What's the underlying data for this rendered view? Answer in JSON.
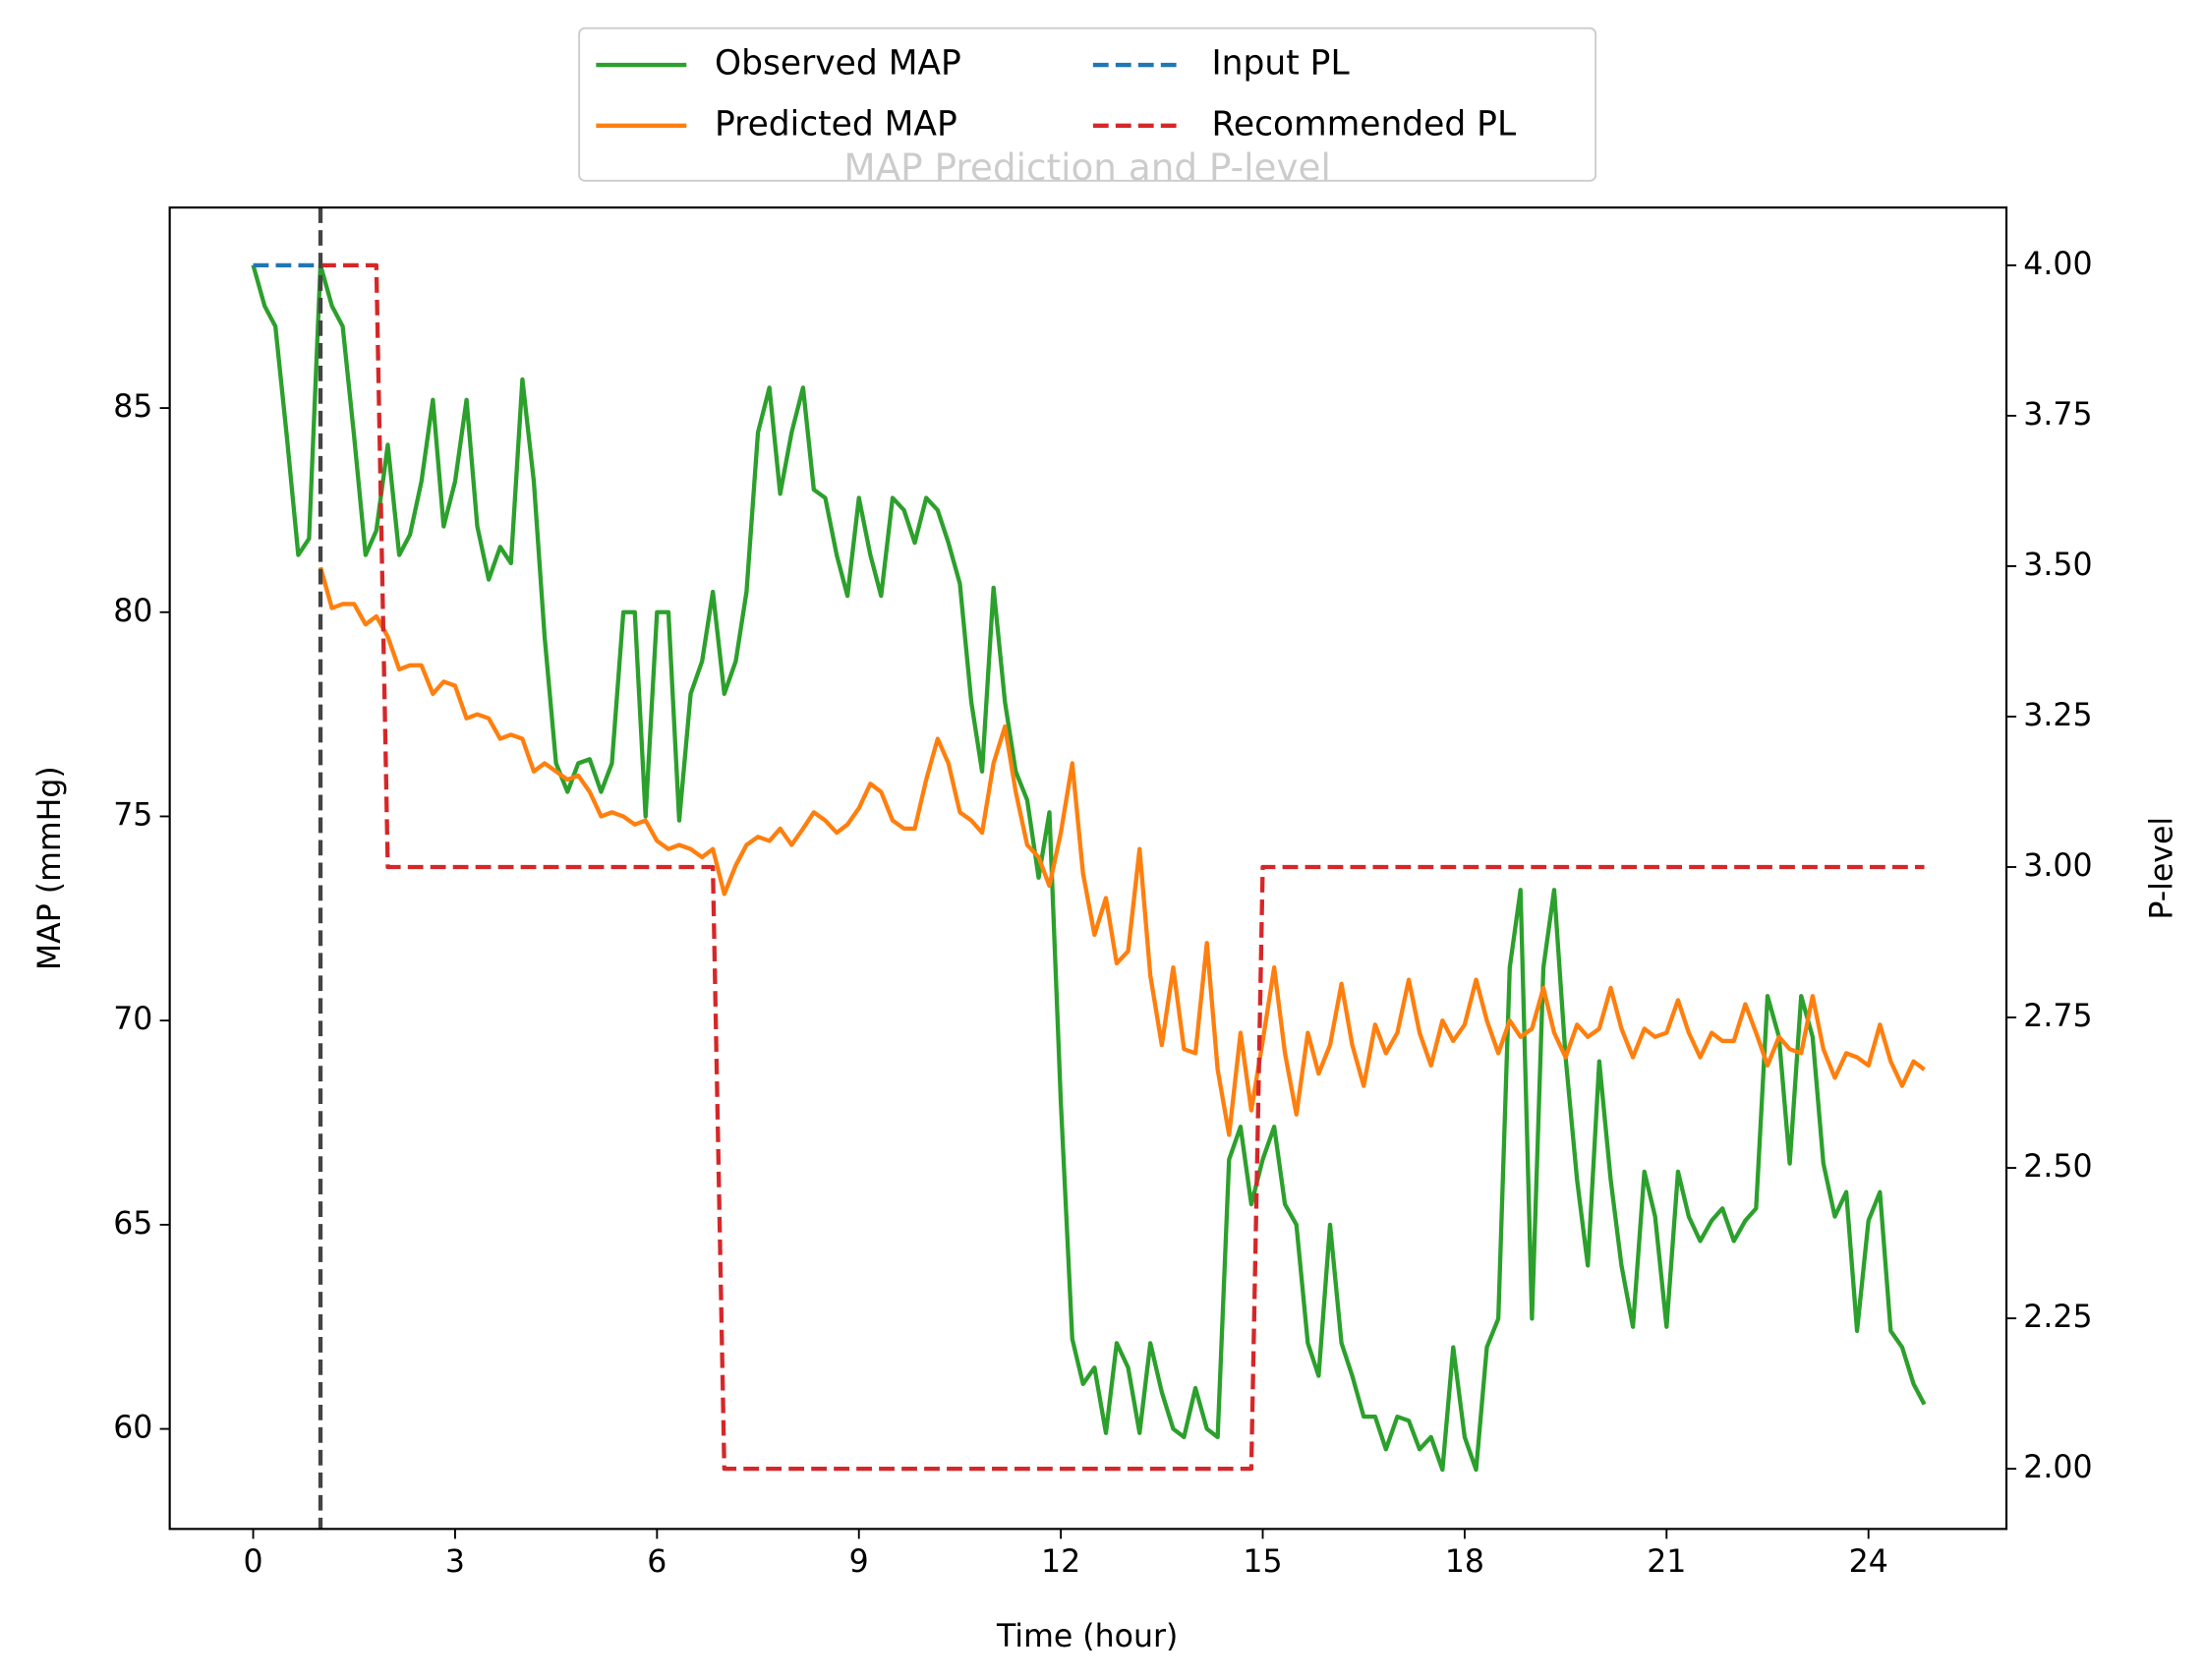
{
  "chart_data": {
    "type": "line",
    "title": "MAP Prediction and P-level",
    "xlabel": "Time (hour)",
    "ylabel": "MAP (mmHg)",
    "y2label": "P-level",
    "xlim": [
      -1.24,
      26.05
    ],
    "ylim": [
      57.55,
      89.91
    ],
    "y2lim": [
      1.9,
      4.096
    ],
    "xticks": [
      0,
      3,
      6,
      9,
      12,
      15,
      18,
      21,
      24
    ],
    "yticks": [
      60,
      65,
      70,
      75,
      80,
      85
    ],
    "y2ticks": [
      {
        "value": 2,
        "label": "2.00"
      },
      {
        "value": 2.25,
        "label": "2.25"
      },
      {
        "value": 2.5,
        "label": "2.50"
      },
      {
        "value": 2.75,
        "label": "2.75"
      },
      {
        "value": 3,
        "label": "3.00"
      },
      {
        "value": 3.25,
        "label": "3.25"
      },
      {
        "value": 3.5,
        "label": "3.50"
      },
      {
        "value": 3.75,
        "label": "3.75"
      },
      {
        "value": 4,
        "label": "4.00"
      }
    ],
    "legend_loc": "upper center",
    "vlines": [
      {
        "x": 1,
        "color": "#444444"
      }
    ],
    "x": [
      0,
      0.17,
      0.33,
      0.5,
      0.67,
      0.83,
      1,
      1.17,
      1.33,
      1.5,
      1.67,
      1.83,
      2,
      2.17,
      2.33,
      2.5,
      2.67,
      2.83,
      3,
      3.17,
      3.33,
      3.5,
      3.67,
      3.83,
      4,
      4.17,
      4.33,
      4.5,
      4.67,
      4.83,
      5,
      5.17,
      5.33,
      5.5,
      5.67,
      5.83,
      6,
      6.17,
      6.33,
      6.5,
      6.67,
      6.83,
      7,
      7.17,
      7.33,
      7.5,
      7.67,
      7.83,
      8,
      8.17,
      8.33,
      8.5,
      8.67,
      8.83,
      9,
      9.17,
      9.33,
      9.5,
      9.67,
      9.83,
      10,
      10.17,
      10.33,
      10.5,
      10.67,
      10.83,
      11,
      11.17,
      11.33,
      11.5,
      11.67,
      11.83,
      12,
      12.17,
      12.33,
      12.5,
      12.67,
      12.83,
      13,
      13.17,
      13.33,
      13.5,
      13.67,
      13.83,
      14,
      14.17,
      14.33,
      14.5,
      14.67,
      14.83,
      15,
      15.17,
      15.33,
      15.5,
      15.67,
      15.83,
      16,
      16.17,
      16.33,
      16.5,
      16.67,
      16.83,
      17,
      17.17,
      17.33,
      17.5,
      17.67,
      17.83,
      18,
      18.17,
      18.33,
      18.5,
      18.67,
      18.83,
      19,
      19.17,
      19.33,
      19.5,
      19.67,
      19.83,
      20,
      20.17,
      20.33,
      20.5,
      20.67,
      20.83,
      21,
      21.17,
      21.33,
      21.5,
      21.67,
      21.83,
      22,
      22.17,
      22.33,
      22.5,
      22.67,
      22.83,
      23,
      23.17,
      23.33,
      23.5,
      23.67,
      23.83,
      24,
      24.17,
      24.33,
      24.5,
      24.67,
      24.83
    ],
    "series": [
      {
        "name": "Observed MAP",
        "color": "#2ca02c",
        "linestyle": "solid",
        "axis": "y",
        "values": [
          88.5,
          87.5,
          87.0,
          84.3,
          81.4,
          81.8,
          88.5,
          87.5,
          87.0,
          84.3,
          81.4,
          82.0,
          84.1,
          81.4,
          81.9,
          83.2,
          85.2,
          82.1,
          83.2,
          85.2,
          82.1,
          80.8,
          81.6,
          81.2,
          85.7,
          83.2,
          79.4,
          76.3,
          75.6,
          76.3,
          76.4,
          75.6,
          76.3,
          80.0,
          80.0,
          75.0,
          80.0,
          80.0,
          74.9,
          78.0,
          78.8,
          80.5,
          78.0,
          78.8,
          80.5,
          84.4,
          85.5,
          82.9,
          84.4,
          85.5,
          83.0,
          82.8,
          81.4,
          80.4,
          82.8,
          81.4,
          80.4,
          82.8,
          82.5,
          81.7,
          82.8,
          82.5,
          81.7,
          80.7,
          77.8,
          76.1,
          80.6,
          77.8,
          76.1,
          75.4,
          73.5,
          75.1,
          68.0,
          62.2,
          61.1,
          61.5,
          59.9,
          62.1,
          61.5,
          59.9,
          62.1,
          60.9,
          60.0,
          59.8,
          61.0,
          60.0,
          59.8,
          66.6,
          67.4,
          65.5,
          66.6,
          67.4,
          65.5,
          65.0,
          62.1,
          61.3,
          65.0,
          62.1,
          61.3,
          60.3,
          60.3,
          59.5,
          60.3,
          60.2,
          59.5,
          59.8,
          59.0,
          62.0,
          59.8,
          59.0,
          62.0,
          62.7,
          71.3,
          73.2,
          62.7,
          71.3,
          73.2,
          69.1,
          66.1,
          64.0,
          69.0,
          66.1,
          64.0,
          62.5,
          66.3,
          65.2,
          62.5,
          66.3,
          65.2,
          64.6,
          65.1,
          65.4,
          64.6,
          65.1,
          65.4,
          70.6,
          69.6,
          66.5,
          70.6,
          69.6,
          66.5,
          65.2,
          65.8,
          62.4,
          65.1,
          65.8,
          62.4,
          62.0,
          61.1,
          60.6
        ]
      },
      {
        "name": "Predicted MAP",
        "color": "#ff7f0e",
        "linestyle": "solid",
        "axis": "y",
        "values": [
          null,
          null,
          null,
          null,
          null,
          null,
          81.1,
          80.1,
          80.2,
          80.2,
          79.7,
          79.9,
          79.4,
          78.6,
          78.7,
          78.7,
          78.0,
          78.3,
          78.2,
          77.4,
          77.5,
          77.4,
          76.9,
          77.0,
          76.9,
          76.1,
          76.3,
          76.1,
          75.9,
          76.0,
          75.6,
          75.0,
          75.1,
          75.0,
          74.8,
          74.9,
          74.4,
          74.2,
          74.3,
          74.2,
          74.0,
          74.2,
          73.1,
          73.8,
          74.3,
          74.5,
          74.4,
          74.7,
          74.3,
          74.7,
          75.1,
          74.9,
          74.6,
          74.8,
          75.2,
          75.8,
          75.6,
          74.9,
          74.7,
          74.7,
          75.9,
          76.9,
          76.3,
          75.1,
          74.9,
          74.6,
          76.3,
          77.2,
          75.6,
          74.3,
          74.0,
          73.3,
          74.6,
          76.3,
          73.6,
          72.1,
          73.0,
          71.4,
          71.7,
          74.2,
          71.1,
          69.4,
          71.3,
          69.3,
          69.2,
          71.9,
          68.8,
          67.2,
          69.7,
          67.8,
          69.5,
          71.3,
          69.2,
          67.7,
          69.7,
          68.7,
          69.4,
          70.9,
          69.4,
          68.4,
          69.9,
          69.2,
          69.7,
          71.0,
          69.7,
          68.9,
          70.0,
          69.5,
          69.9,
          71.0,
          70.0,
          69.2,
          70.0,
          69.6,
          69.8,
          70.8,
          69.7,
          69.1,
          69.9,
          69.6,
          69.8,
          70.8,
          69.8,
          69.1,
          69.8,
          69.6,
          69.7,
          70.5,
          69.7,
          69.1,
          69.7,
          69.5,
          69.5,
          70.4,
          69.7,
          68.9,
          69.6,
          69.3,
          69.2,
          70.6,
          69.3,
          68.6,
          69.2,
          69.1,
          68.9,
          69.9,
          69.0,
          68.4,
          69.0,
          68.8
        ]
      },
      {
        "name": "Input PL",
        "color": "#1f77b4",
        "linestyle": "dashed",
        "axis": "y2",
        "values": [
          4,
          4,
          4,
          4,
          4,
          4,
          4,
          null,
          null,
          null,
          null,
          null,
          null,
          null,
          null,
          null,
          null,
          null,
          null,
          null,
          null,
          null,
          null,
          null,
          null,
          null,
          null,
          null,
          null,
          null,
          null,
          null,
          null,
          null,
          null,
          null,
          null,
          null,
          null,
          null,
          null,
          null,
          null,
          null,
          null,
          null,
          null,
          null,
          null,
          null,
          null,
          null,
          null,
          null,
          null,
          null,
          null,
          null,
          null,
          null,
          null,
          null,
          null,
          null,
          null,
          null,
          null,
          null,
          null,
          null,
          null,
          null,
          null,
          null,
          null,
          null,
          null,
          null,
          null,
          null,
          null,
          null,
          null,
          null,
          null,
          null,
          null,
          null,
          null,
          null,
          null,
          null,
          null,
          null,
          null,
          null,
          null,
          null,
          null,
          null,
          null,
          null,
          null,
          null,
          null,
          null,
          null,
          null,
          null,
          null,
          null,
          null,
          null,
          null,
          null,
          null,
          null,
          null,
          null,
          null,
          null,
          null,
          null,
          null,
          null,
          null,
          null,
          null,
          null,
          null,
          null,
          null,
          null,
          null,
          null,
          null,
          null,
          null,
          null,
          null,
          null,
          null,
          null,
          null,
          null,
          null,
          null,
          null,
          null,
          null
        ]
      },
      {
        "name": "Recommended PL",
        "color": "#d62728",
        "linestyle": "dashed",
        "axis": "y2",
        "values": [
          null,
          null,
          null,
          null,
          null,
          null,
          4,
          4,
          4,
          4,
          4,
          4,
          3,
          3,
          3,
          3,
          3,
          3,
          3,
          3,
          3,
          3,
          3,
          3,
          3,
          3,
          3,
          3,
          3,
          3,
          3,
          3,
          3,
          3,
          3,
          3,
          3,
          3,
          3,
          3,
          3,
          3,
          2,
          2,
          2,
          2,
          2,
          2,
          2,
          2,
          2,
          2,
          2,
          2,
          2,
          2,
          2,
          2,
          2,
          2,
          2,
          2,
          2,
          2,
          2,
          2,
          2,
          2,
          2,
          2,
          2,
          2,
          2,
          2,
          2,
          2,
          2,
          2,
          2,
          2,
          2,
          2,
          2,
          2,
          2,
          2,
          2,
          2,
          2,
          2,
          3,
          3,
          3,
          3,
          3,
          3,
          3,
          3,
          3,
          3,
          3,
          3,
          3,
          3,
          3,
          3,
          3,
          3,
          3,
          3,
          3,
          3,
          3,
          3,
          3,
          3,
          3,
          3,
          3,
          3,
          3,
          3,
          3,
          3,
          3,
          3,
          3,
          3,
          3,
          3,
          3,
          3,
          3,
          3,
          3,
          3,
          3,
          3,
          3,
          3,
          3,
          3,
          3,
          3,
          3,
          3,
          3,
          3,
          3,
          3
        ]
      }
    ]
  }
}
